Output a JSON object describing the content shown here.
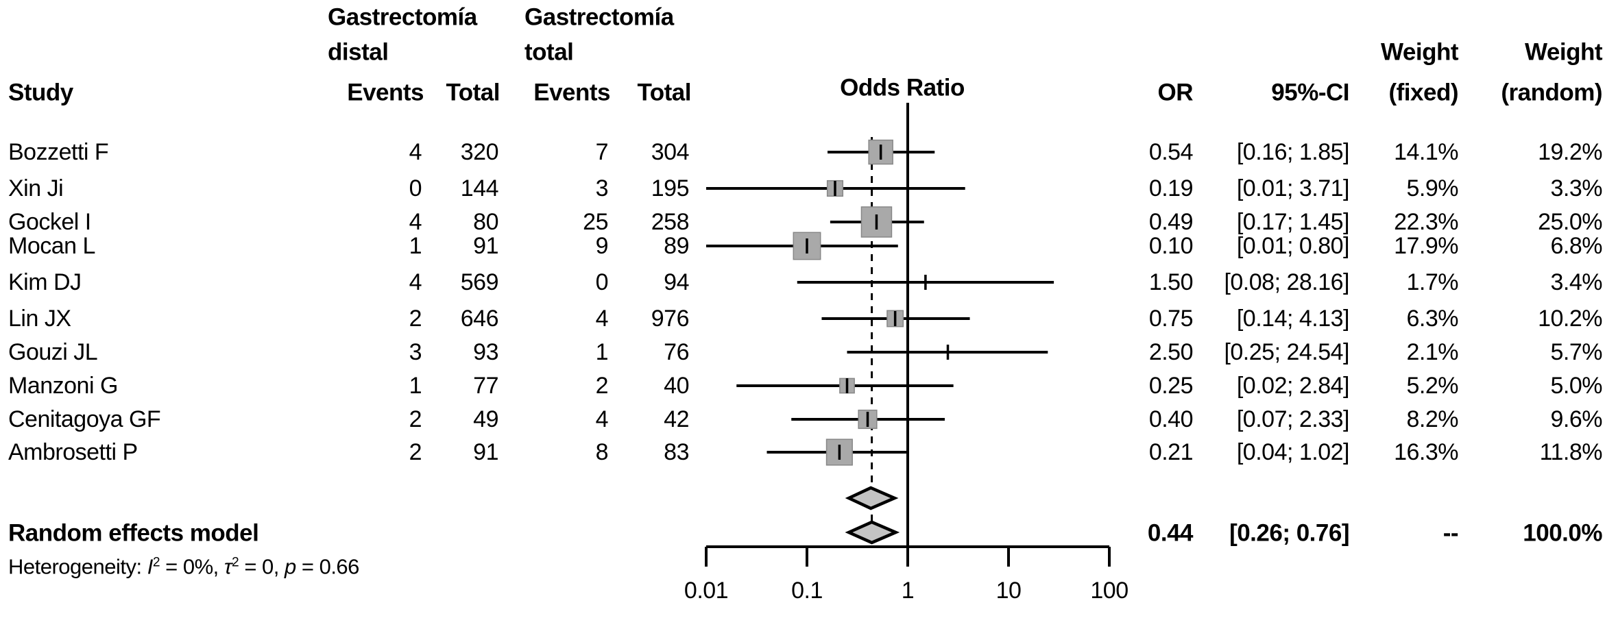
{
  "header": {
    "study": "Study",
    "group1_line1": "Gastrectomía",
    "group1_line2": "distal",
    "group2_line1": "Gastrectomía",
    "group2_line2": "total",
    "events1": "Events",
    "total1": "Total",
    "events2": "Events",
    "total2": "Total",
    "plot_title": "Odds Ratio",
    "or": "OR",
    "ci": "95%-CI",
    "weight_fixed_line1": "Weight",
    "weight_fixed_line2": "(fixed)",
    "weight_random_line1": "Weight",
    "weight_random_line2": "(random)"
  },
  "chart_data": {
    "type": "forest",
    "x_scale": "log10",
    "x_ticks": [
      0.01,
      0.1,
      1,
      10,
      100
    ],
    "x_tick_labels": [
      "0.01",
      "0.1",
      "1",
      "10",
      "100"
    ],
    "reference_line": 1,
    "pooled_dashed_line": 0.44,
    "studies": [
      {
        "name": "Bozzetti F",
        "events_distal": 4,
        "total_distal": 320,
        "events_total": 7,
        "total_total": 304,
        "or": 0.54,
        "ci_low": 0.16,
        "ci_high": 1.85,
        "or_text": "0.54",
        "ci_text": "[0.16; 1.85]",
        "weight_fixed": "14.1%",
        "weight_random": "19.2%"
      },
      {
        "name": "Xin Ji",
        "events_distal": 0,
        "total_distal": 144,
        "events_total": 3,
        "total_total": 195,
        "or": 0.19,
        "ci_low": 0.01,
        "ci_high": 3.71,
        "or_text": "0.19",
        "ci_text": "[0.01; 3.71]",
        "weight_fixed": "5.9%",
        "weight_random": "3.3%"
      },
      {
        "name": "Gockel I",
        "events_distal": 4,
        "total_distal": 80,
        "events_total": 25,
        "total_total": 258,
        "or": 0.49,
        "ci_low": 0.17,
        "ci_high": 1.45,
        "or_text": "0.49",
        "ci_text": "[0.17; 1.45]",
        "weight_fixed": "22.3%",
        "weight_random": "25.0%"
      },
      {
        "name": "Mocan L",
        "events_distal": 1,
        "total_distal": 91,
        "events_total": 9,
        "total_total": 89,
        "or": 0.1,
        "ci_low": 0.01,
        "ci_high": 0.8,
        "or_text": "0.10",
        "ci_text": "[0.01; 0.80]",
        "weight_fixed": "17.9%",
        "weight_random": "6.8%"
      },
      {
        "name": "Kim DJ",
        "events_distal": 4,
        "total_distal": 569,
        "events_total": 0,
        "total_total": 94,
        "or": 1.5,
        "ci_low": 0.08,
        "ci_high": 28.16,
        "or_text": "1.50",
        "ci_text": "[0.08; 28.16]",
        "weight_fixed": "1.7%",
        "weight_random": "3.4%"
      },
      {
        "name": "Lin JX",
        "events_distal": 2,
        "total_distal": 646,
        "events_total": 4,
        "total_total": 976,
        "or": 0.75,
        "ci_low": 0.14,
        "ci_high": 4.13,
        "or_text": "0.75",
        "ci_text": "[0.14; 4.13]",
        "weight_fixed": "6.3%",
        "weight_random": "10.2%"
      },
      {
        "name": "Gouzi JL",
        "events_distal": 3,
        "total_distal": 93,
        "events_total": 1,
        "total_total": 76,
        "or": 2.5,
        "ci_low": 0.25,
        "ci_high": 24.54,
        "or_text": "2.50",
        "ci_text": "[0.25; 24.54]",
        "weight_fixed": "2.1%",
        "weight_random": "5.7%"
      },
      {
        "name": "Manzoni G",
        "events_distal": 1,
        "total_distal": 77,
        "events_total": 2,
        "total_total": 40,
        "or": 0.25,
        "ci_low": 0.02,
        "ci_high": 2.84,
        "or_text": "0.25",
        "ci_text": "[0.02; 2.84]",
        "weight_fixed": "5.2%",
        "weight_random": "5.0%"
      },
      {
        "name": "Cenitagoya GF",
        "events_distal": 2,
        "total_distal": 49,
        "events_total": 4,
        "total_total": 42,
        "or": 0.4,
        "ci_low": 0.07,
        "ci_high": 2.33,
        "or_text": "0.40",
        "ci_text": "[0.07; 2.33]",
        "weight_fixed": "8.2%",
        "weight_random": "9.6%"
      },
      {
        "name": "Ambrosetti P",
        "events_distal": 2,
        "total_distal": 91,
        "events_total": 8,
        "total_total": 83,
        "or": 0.21,
        "ci_low": 0.04,
        "ci_high": 1.02,
        "or_text": "0.21",
        "ci_text": "[0.04; 1.02]",
        "weight_fixed": "16.3%",
        "weight_random": "11.8%"
      }
    ],
    "fixed_effect_diamond": {
      "or": 0.43,
      "ci_low": 0.26,
      "ci_high": 0.74
    },
    "summary": {
      "label": "Random effects model",
      "or": 0.44,
      "ci_low": 0.26,
      "ci_high": 0.76,
      "or_text": "0.44",
      "ci_text": "[0.26; 0.76]",
      "weight_fixed": "--",
      "weight_random": "100.0%"
    },
    "heterogeneity": {
      "prefix": "Heterogeneity: ",
      "i_label": "I",
      "i_sup": "2",
      "i_eq": " = 0%, ",
      "tau_label": "τ",
      "tau_sup": "2",
      "tau_eq": " = 0, ",
      "p_label": "p",
      "p_eq": " = 0.66"
    },
    "colors": {
      "square_fill": "#a9a9a9",
      "square_border": "#878787",
      "diamond_fill": "#c4c4c4",
      "line": "#000000"
    }
  }
}
